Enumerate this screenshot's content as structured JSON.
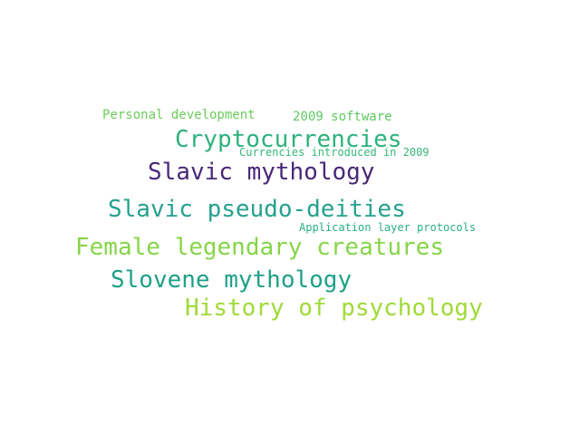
{
  "word_cloud": {
    "words": [
      {
        "text": "Personal development",
        "color": "#6ccd5a"
      },
      {
        "text": "2009 software",
        "color": "#5ec962"
      },
      {
        "text": "Cryptocurrencies",
        "color": "#2db27d"
      },
      {
        "text": "Currencies introduced in 2009",
        "color": "#35b779"
      },
      {
        "text": "Slavic mythology",
        "color": "#482878"
      },
      {
        "text": "Slavic pseudo-deities",
        "color": "#25a18e"
      },
      {
        "text": "Application layer protocols",
        "color": "#28ae80"
      },
      {
        "text": "Female legendary creatures",
        "color": "#86d549"
      },
      {
        "text": "Slovene mythology",
        "color": "#1fa088"
      },
      {
        "text": "History of psychology",
        "color": "#a0da39"
      }
    ]
  }
}
